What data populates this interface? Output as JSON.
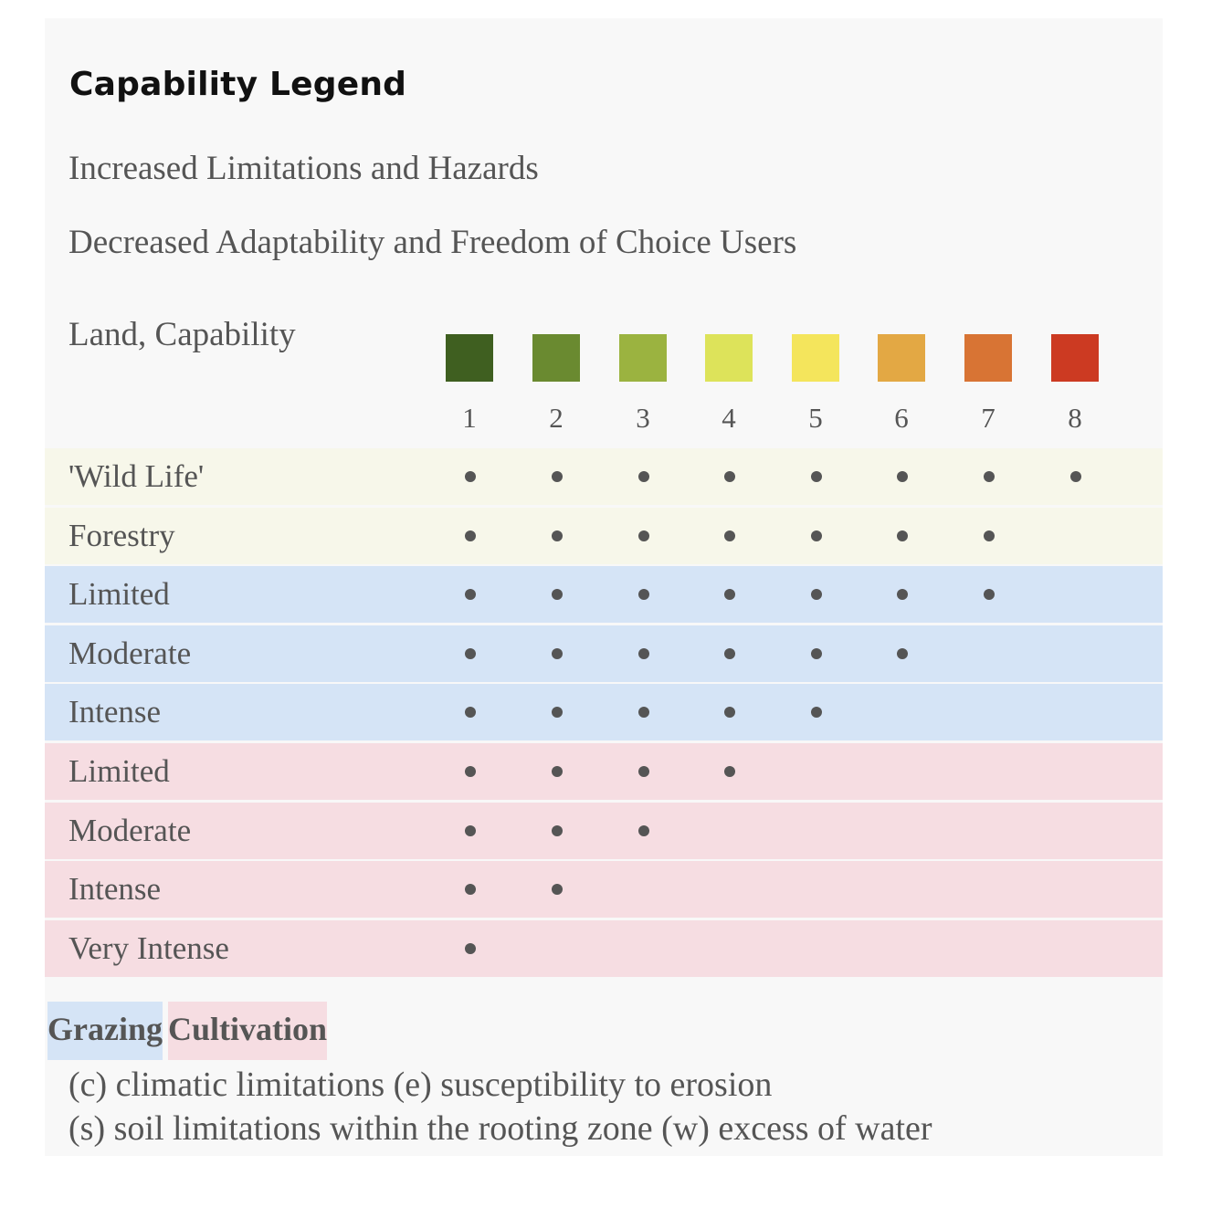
{
  "title": "Capability Legend",
  "subtitle_1": "Increased Limitations and Hazards",
  "subtitle_2": "Decreased Adaptability and Freedom of Choice Users",
  "land_capability_label": "Land, Capability",
  "classes": [
    {
      "label": "1",
      "color": "#3f5f20"
    },
    {
      "label": "2",
      "color": "#6a8a30"
    },
    {
      "label": "3",
      "color": "#9bb340"
    },
    {
      "label": "4",
      "color": "#dde35a"
    },
    {
      "label": "5",
      "color": "#f4e55c"
    },
    {
      "label": "6",
      "color": "#e3a844"
    },
    {
      "label": "7",
      "color": "#d87434"
    },
    {
      "label": "8",
      "color": "#cc3a22"
    }
  ],
  "rows": [
    {
      "label": "'Wild Life'",
      "group": "other",
      "max_class": 8
    },
    {
      "label": "Forestry",
      "group": "other",
      "max_class": 7
    },
    {
      "label": "Limited",
      "group": "grazing",
      "max_class": 7
    },
    {
      "label": "Moderate",
      "group": "grazing",
      "max_class": 6
    },
    {
      "label": "Intense",
      "group": "grazing",
      "max_class": 5
    },
    {
      "label": "Limited",
      "group": "cultivation",
      "max_class": 4
    },
    {
      "label": "Moderate",
      "group": "cultivation",
      "max_class": 3
    },
    {
      "label": "Intense",
      "group": "cultivation",
      "max_class": 2
    },
    {
      "label": "Very Intense",
      "group": "cultivation",
      "max_class": 1
    }
  ],
  "group_colors": {
    "other": "#f7f7ea",
    "grazing": "#d5e4f6",
    "cultivation": "#f6dde2"
  },
  "legend": {
    "grazing": "Grazing",
    "cultivation": "Cultivation"
  },
  "notes": {
    "line_1": "(c) climatic limitations (e) susceptibility to erosion",
    "line_2": "(s) soil limitations within the rooting zone (w) excess of water"
  }
}
